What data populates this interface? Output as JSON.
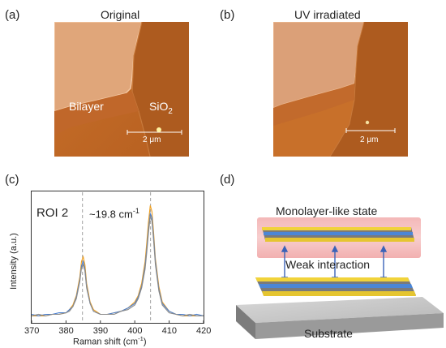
{
  "panels": {
    "a": {
      "label": "(a)",
      "title": "Original",
      "bilayer": "Bilayer",
      "sio2_main": "SiO",
      "sio2_sub": "2",
      "scale": "2 μm"
    },
    "b": {
      "label": "(b)",
      "title": "UV irradiated",
      "scale": "2 μm"
    },
    "c": {
      "label": "(c)",
      "roi": "ROI 2",
      "shift_main": "~19.8 cm",
      "shift_sup": "-1",
      "ylabel": "Intensity (a.u.)",
      "xlabel_main": "Raman shift (cm",
      "xlabel_sup": "-1",
      "xlabel_end": ")"
    },
    "d": {
      "label": "(d)",
      "top": "Monolayer-like state",
      "mid": "Weak interaction",
      "bottom": "Substrate"
    }
  },
  "chart_data": {
    "type": "line",
    "xlim": [
      370,
      420
    ],
    "x_ticks": [
      "370",
      "380",
      "390",
      "400",
      "410",
      "420"
    ],
    "peaks": [
      384.8,
      404.6
    ],
    "x": [
      370,
      372,
      374,
      376,
      378,
      380,
      381,
      382,
      383,
      384,
      384.5,
      385,
      385.5,
      386,
      387,
      388,
      390,
      392,
      394,
      396,
      398,
      400,
      401,
      402,
      403,
      403.5,
      404,
      404.5,
      405,
      405.5,
      406,
      407,
      408,
      410,
      412,
      414,
      416,
      418,
      420
    ],
    "series": [
      {
        "color": "#f0a020",
        "values": [
          0.05,
          0.05,
          0.05,
          0.06,
          0.06,
          0.07,
          0.09,
          0.12,
          0.18,
          0.3,
          0.4,
          0.43,
          0.38,
          0.26,
          0.14,
          0.09,
          0.06,
          0.06,
          0.07,
          0.08,
          0.1,
          0.14,
          0.18,
          0.26,
          0.4,
          0.52,
          0.66,
          0.76,
          0.72,
          0.58,
          0.42,
          0.24,
          0.14,
          0.08,
          0.06,
          0.05,
          0.05,
          0.05,
          0.05
        ]
      },
      {
        "color": "#4a7fd0",
        "values": [
          0.06,
          0.05,
          0.06,
          0.06,
          0.07,
          0.07,
          0.09,
          0.11,
          0.17,
          0.28,
          0.37,
          0.4,
          0.35,
          0.24,
          0.13,
          0.08,
          0.06,
          0.06,
          0.07,
          0.08,
          0.1,
          0.13,
          0.17,
          0.24,
          0.37,
          0.48,
          0.61,
          0.71,
          0.68,
          0.55,
          0.4,
          0.22,
          0.13,
          0.08,
          0.06,
          0.06,
          0.05,
          0.06,
          0.05
        ]
      },
      {
        "color": "#8a8a8a",
        "values": [
          0.05,
          0.06,
          0.05,
          0.06,
          0.06,
          0.07,
          0.08,
          0.11,
          0.16,
          0.27,
          0.36,
          0.38,
          0.34,
          0.23,
          0.13,
          0.08,
          0.06,
          0.06,
          0.06,
          0.08,
          0.09,
          0.12,
          0.16,
          0.23,
          0.35,
          0.46,
          0.59,
          0.69,
          0.66,
          0.53,
          0.38,
          0.21,
          0.12,
          0.07,
          0.06,
          0.05,
          0.06,
          0.05,
          0.05
        ]
      }
    ]
  }
}
